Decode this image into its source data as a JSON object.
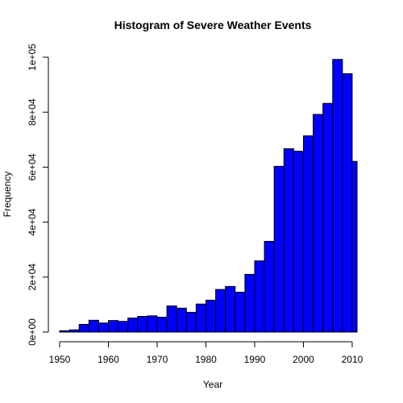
{
  "chart_data": {
    "type": "histogram",
    "title": "Histogram of Severe Weather Events",
    "xlabel": "Year",
    "ylabel": "Frequency",
    "bar_color": "#0000FF",
    "bar_border_color": "#000000",
    "xlim": [
      1950,
      2011
    ],
    "ylim": [
      0,
      100000
    ],
    "x_ticks": [
      1950,
      1960,
      1970,
      1980,
      1990,
      2000,
      2010
    ],
    "x_tick_labels": [
      "1950",
      "1960",
      "1970",
      "1980",
      "1990",
      "2000",
      "2010"
    ],
    "y_ticks": [
      0,
      20000,
      40000,
      60000,
      80000,
      100000
    ],
    "y_tick_labels": [
      "0e+00",
      "2e+04",
      "4e+04",
      "6e+04",
      "8e+04",
      "1e+05"
    ],
    "bin_edges": [
      1950,
      1952,
      1954,
      1956,
      1958,
      1960,
      1962,
      1964,
      1966,
      1968,
      1970,
      1972,
      1974,
      1976,
      1978,
      1980,
      1982,
      1984,
      1986,
      1988,
      1990,
      1992,
      1994,
      1996,
      1998,
      2000,
      2002,
      2004,
      2006,
      2008,
      2010,
      2011
    ],
    "values": [
      500,
      800,
      2800,
      4300,
      3300,
      4200,
      3900,
      5100,
      5700,
      5900,
      5400,
      9500,
      8700,
      7200,
      10200,
      11600,
      15500,
      16600,
      14500,
      21000,
      25900,
      33000,
      60300,
      66700,
      65800,
      71400,
      79200,
      83200,
      99200,
      94000,
      62100
    ]
  }
}
